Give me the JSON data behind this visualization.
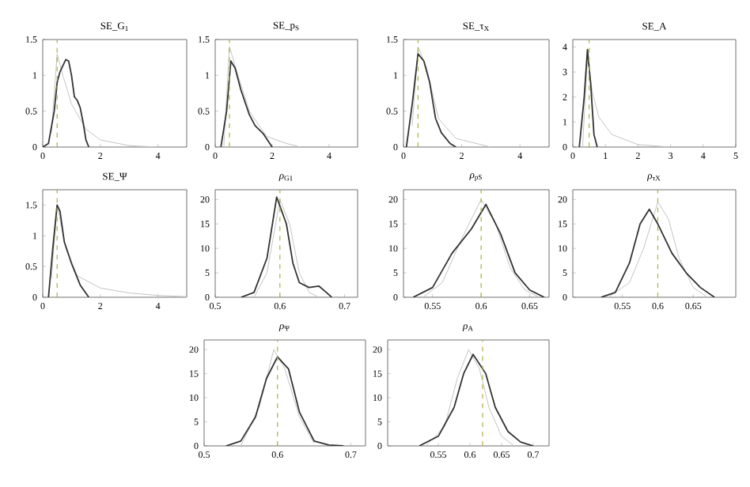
{
  "chart_data": [
    {
      "type": "line",
      "title": "SE_G$_{1}$",
      "xlim": [
        0,
        5
      ],
      "xticks": [
        0,
        2,
        4
      ],
      "ylim": [
        0,
        1.5
      ],
      "yticks": [
        0,
        0.5,
        1,
        1.5
      ],
      "series": [
        {
          "color": "#c4c4c4",
          "x": [
            0.3,
            0.5,
            0.7,
            1.0,
            1.5,
            2,
            3,
            4
          ],
          "values": [
            0.2,
            1.3,
            1.0,
            0.6,
            0.25,
            0.1,
            0.02,
            0
          ]
        },
        {
          "color": "#333333",
          "x": [
            0,
            0.2,
            0.4,
            0.5,
            0.6,
            0.8,
            0.9,
            1.0,
            1.1,
            1.2,
            1.3,
            1.4,
            1.5,
            1.6
          ],
          "values": [
            0,
            0.05,
            0.5,
            0.9,
            1.05,
            1.22,
            1.2,
            1.0,
            0.7,
            0.65,
            0.55,
            0.35,
            0.1,
            0
          ]
        }
      ],
      "ref_lines": [
        {
          "axis": "x",
          "value": 0.5,
          "color": "#b0b040",
          "line_style": "dashed"
        }
      ]
    },
    {
      "type": "line",
      "title": "SE_p$_{S}$",
      "xlim": [
        0,
        5
      ],
      "xticks": [
        0,
        2,
        4
      ],
      "ylim": [
        0,
        1.5
      ],
      "yticks": [
        0,
        0.5,
        1,
        1.5
      ],
      "series": [
        {
          "color": "#c4c4c4",
          "x": [
            0.3,
            0.5,
            0.8,
            1.2,
            1.8,
            2.5,
            3
          ],
          "values": [
            0,
            1.4,
            1.0,
            0.5,
            0.15,
            0.05,
            0
          ]
        },
        {
          "color": "#333333",
          "x": [
            0.2,
            0.4,
            0.55,
            0.7,
            0.9,
            1.2,
            1.4,
            1.7,
            2.0
          ],
          "values": [
            0,
            0.5,
            1.2,
            1.1,
            0.8,
            0.45,
            0.3,
            0.18,
            0
          ]
        }
      ],
      "ref_lines": [
        {
          "axis": "x",
          "value": 0.5,
          "color": "#b0b040",
          "line_style": "dashed"
        }
      ]
    },
    {
      "type": "line",
      "title": "SE_τ$_{X}$",
      "xlim": [
        0,
        5
      ],
      "xticks": [
        0,
        2,
        4
      ],
      "ylim": [
        0,
        1.5
      ],
      "yticks": [
        0,
        0.5,
        1,
        1.5
      ],
      "series": [
        {
          "color": "#c4c4c4",
          "x": [
            0.3,
            0.5,
            0.8,
            1.2,
            1.8,
            2.5,
            3
          ],
          "values": [
            0.3,
            1.4,
            1.1,
            0.4,
            0.12,
            0.05,
            0
          ]
        },
        {
          "color": "#333333",
          "x": [
            0.1,
            0.3,
            0.5,
            0.7,
            0.9,
            1.1,
            1.3,
            1.6,
            1.8
          ],
          "values": [
            0,
            0.6,
            1.3,
            1.2,
            0.9,
            0.4,
            0.2,
            0.05,
            0
          ]
        }
      ],
      "ref_lines": [
        {
          "axis": "x",
          "value": 0.5,
          "color": "#b0b040",
          "line_style": "dashed"
        }
      ]
    },
    {
      "type": "line",
      "title": "SE_A",
      "xlim": [
        0,
        5
      ],
      "xticks": [
        0,
        1,
        2,
        3,
        4,
        5
      ],
      "ylim": [
        0,
        4.3
      ],
      "yticks": [
        0,
        1,
        2,
        3,
        4
      ],
      "series": [
        {
          "color": "#c4c4c4",
          "x": [
            0.3,
            0.45,
            0.6,
            0.8,
            1.2,
            2,
            3
          ],
          "values": [
            0,
            3.6,
            2.2,
            1.2,
            0.5,
            0.1,
            0
          ]
        },
        {
          "color": "#333333",
          "x": [
            0.2,
            0.35,
            0.45,
            0.55,
            0.65,
            0.75
          ],
          "values": [
            0,
            2,
            3.9,
            2.5,
            0.5,
            0
          ]
        }
      ],
      "ref_lines": [
        {
          "axis": "x",
          "value": 0.5,
          "color": "#b0b040",
          "line_style": "dashed"
        }
      ]
    },
    {
      "type": "line",
      "title": "SE_Ψ",
      "xlim": [
        0,
        5
      ],
      "xticks": [
        0,
        2,
        4
      ],
      "ylim": [
        0,
        1.75
      ],
      "yticks": [
        0,
        0.5,
        1,
        1.5
      ],
      "series": [
        {
          "color": "#c4c4c4",
          "x": [
            0.3,
            0.5,
            0.8,
            1.2,
            2,
            3,
            4,
            5
          ],
          "values": [
            0.3,
            1.5,
            0.8,
            0.35,
            0.15,
            0.07,
            0.03,
            0.01
          ]
        },
        {
          "color": "#333333",
          "x": [
            0.2,
            0.35,
            0.5,
            0.6,
            0.75,
            1.0,
            1.3,
            1.6
          ],
          "values": [
            0,
            0.8,
            1.5,
            1.4,
            0.9,
            0.55,
            0.2,
            0
          ]
        }
      ],
      "ref_lines": [
        {
          "axis": "x",
          "value": 0.5,
          "color": "#b0b040",
          "line_style": "dashed"
        }
      ]
    },
    {
      "type": "line",
      "title": "*ρ*$_{G1}$",
      "xlim": [
        0.5,
        0.72
      ],
      "xticks": [
        0.5,
        0.6,
        0.7
      ],
      "ylim": [
        0,
        22
      ],
      "yticks": [
        0,
        5,
        10,
        15,
        20
      ],
      "series": [
        {
          "color": "#c4c4c4",
          "x": [
            0.56,
            0.58,
            0.6,
            0.615,
            0.63,
            0.645,
            0.66
          ],
          "values": [
            0,
            5,
            20,
            15,
            5,
            1,
            0
          ]
        },
        {
          "color": "#333333",
          "x": [
            0.54,
            0.56,
            0.58,
            0.595,
            0.61,
            0.62,
            0.63,
            0.645,
            0.66,
            0.67,
            0.68
          ],
          "values": [
            0,
            1,
            8,
            20.5,
            15,
            7,
            3,
            2,
            2.3,
            1.2,
            0
          ]
        }
      ],
      "ref_lines": [
        {
          "axis": "x",
          "value": 0.6,
          "color": "#b0b040",
          "line_style": "dashed"
        }
      ]
    },
    {
      "type": "line",
      "title": "*ρ*$_{pS}$",
      "xlim": [
        0.52,
        0.67
      ],
      "xticks": [
        0.55,
        0.6,
        0.65
      ],
      "ylim": [
        0,
        22
      ],
      "yticks": [
        0,
        5,
        10,
        15,
        20
      ],
      "series": [
        {
          "color": "#c4c4c4",
          "x": [
            0.54,
            0.56,
            0.58,
            0.6,
            0.615,
            0.63,
            0.645,
            0.66
          ],
          "values": [
            0,
            3,
            12,
            20,
            15,
            6,
            1.5,
            0
          ]
        },
        {
          "color": "#333333",
          "x": [
            0.53,
            0.55,
            0.57,
            0.59,
            0.605,
            0.62,
            0.635,
            0.65,
            0.665
          ],
          "values": [
            0,
            2,
            9,
            14,
            19,
            13,
            5,
            1.5,
            0
          ]
        }
      ],
      "ref_lines": [
        {
          "axis": "x",
          "value": 0.6,
          "color": "#b0b040",
          "line_style": "dashed"
        }
      ]
    },
    {
      "type": "line",
      "title": "*ρ*$_{τX}$",
      "xlim": [
        0.48,
        0.71
      ],
      "xticks": [
        0.55,
        0.6,
        0.65
      ],
      "ylim": [
        0,
        22
      ],
      "yticks": [
        0,
        5,
        10,
        15,
        20
      ],
      "series": [
        {
          "color": "#c4c4c4",
          "x": [
            0.53,
            0.56,
            0.58,
            0.6,
            0.615,
            0.63,
            0.65,
            0.67
          ],
          "values": [
            0,
            3,
            10,
            19.5,
            16,
            8,
            2,
            0
          ]
        },
        {
          "color": "#333333",
          "x": [
            0.52,
            0.54,
            0.56,
            0.575,
            0.588,
            0.6,
            0.62,
            0.64,
            0.66,
            0.68
          ],
          "values": [
            0,
            1,
            7,
            15,
            18,
            15,
            9,
            5,
            2,
            0
          ]
        }
      ],
      "ref_lines": [
        {
          "axis": "x",
          "value": 0.6,
          "color": "#b0b040",
          "line_style": "dashed"
        }
      ]
    },
    {
      "type": "line",
      "title": "*ρ*$_{Ψ}$",
      "xlim": [
        0.5,
        0.72
      ],
      "xticks": [
        0.5,
        0.6,
        0.7
      ],
      "ylim": [
        0,
        22
      ],
      "yticks": [
        0,
        5,
        10,
        15,
        20
      ],
      "series": [
        {
          "color": "#c4c4c4",
          "x": [
            0.55,
            0.575,
            0.595,
            0.61,
            0.63,
            0.65
          ],
          "values": [
            0,
            8,
            20,
            16,
            6,
            0.5
          ]
        },
        {
          "color": "#333333",
          "x": [
            0.53,
            0.55,
            0.57,
            0.585,
            0.6,
            0.615,
            0.63,
            0.65,
            0.67,
            0.69
          ],
          "values": [
            0,
            1,
            6,
            14,
            18.5,
            16,
            7,
            1,
            0.2,
            0
          ]
        }
      ],
      "ref_lines": [
        {
          "axis": "x",
          "value": 0.6,
          "color": "#b0b040",
          "line_style": "dashed"
        }
      ]
    },
    {
      "type": "line",
      "title": "*ρ*$_{A}$",
      "xlim": [
        0.47,
        0.725
      ],
      "xticks": [
        0.55,
        0.6,
        0.65,
        0.7
      ],
      "ylim": [
        0,
        22
      ],
      "yticks": [
        0,
        5,
        10,
        15,
        20
      ],
      "series": [
        {
          "color": "#c4c4c4",
          "x": [
            0.53,
            0.56,
            0.58,
            0.598,
            0.615,
            0.63,
            0.65,
            0.67
          ],
          "values": [
            0,
            4,
            14,
            20,
            16,
            8,
            2,
            0
          ]
        },
        {
          "color": "#333333",
          "x": [
            0.52,
            0.55,
            0.575,
            0.59,
            0.605,
            0.625,
            0.64,
            0.66,
            0.68,
            0.7
          ],
          "values": [
            0,
            2,
            8,
            15,
            19,
            15,
            8,
            3,
            0.8,
            0
          ]
        }
      ],
      "ref_lines": [
        {
          "axis": "x",
          "value": 0.62,
          "color": "#b0b040",
          "line_style": "dashed"
        }
      ]
    }
  ]
}
